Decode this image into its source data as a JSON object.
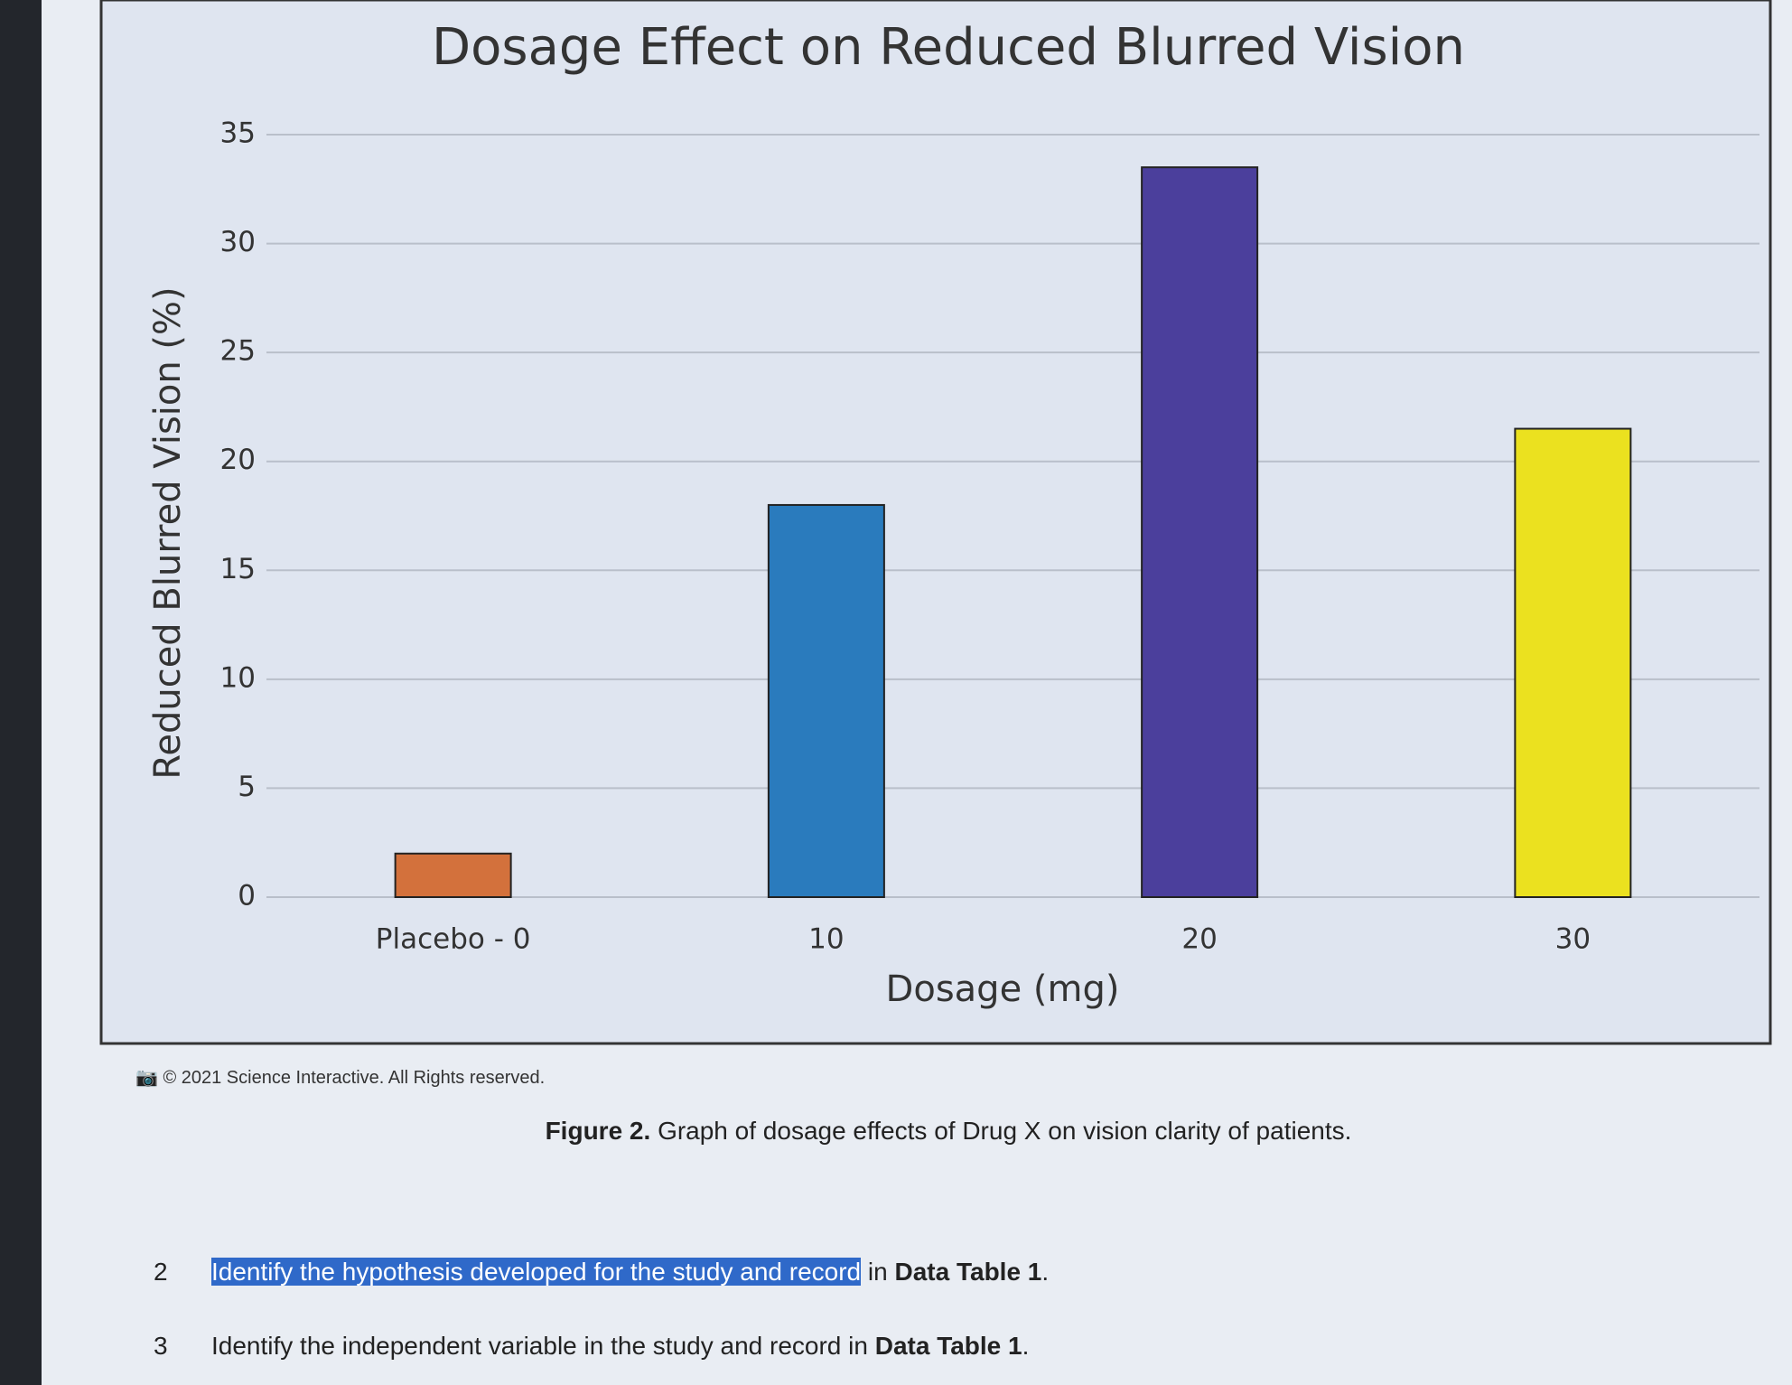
{
  "chart_data": {
    "type": "bar",
    "title": "Dosage Effect on Reduced Blurred Vision",
    "x_label": "Dosage (mg)",
    "y_label": "Reduced Blurred Vision (%)",
    "categories": [
      "Placebo - 0",
      "10",
      "20",
      "30"
    ],
    "values": [
      2,
      18,
      33.5,
      21.5
    ],
    "colors": [
      "#d3713c",
      "#2a7bbd",
      "#4b3f9c",
      "#ebe11f"
    ],
    "ylim": [
      0,
      35
    ],
    "yticks": [
      0,
      5,
      10,
      15,
      20,
      25,
      30,
      35
    ],
    "grid": true
  },
  "copyright": "© 2021 Science Interactive. All Rights reserved.",
  "caption": {
    "label": "Figure 2.",
    "text": "Graph of dosage effects of Drug X on vision clarity of patients."
  },
  "questions": [
    {
      "number": "2",
      "highlight": "Identify the hypothesis developed for the study and record",
      "text": "in",
      "bold": "Data Table 1",
      "end": "."
    },
    {
      "number": "3",
      "text": "Identify the independent variable in the study and record in",
      "bold": "Data Table 1",
      "end": "."
    }
  ]
}
